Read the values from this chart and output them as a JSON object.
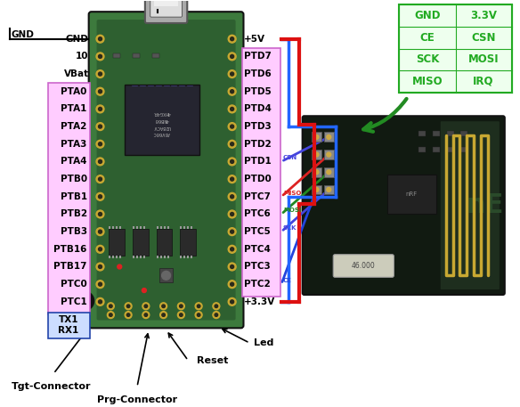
{
  "fig_width": 5.84,
  "fig_height": 4.57,
  "bg_color": "#ffffff",
  "board_left_labels": [
    "GND",
    "10",
    "VBat",
    "PTA0",
    "PTA1",
    "PTA2",
    "PTA3",
    "PTA4",
    "PTB0",
    "PTB1",
    "PTB2",
    "PTB3",
    "PTB16",
    "PTB17",
    "PTC0",
    "PTC1"
  ],
  "board_right_labels_mid": [
    "PTD7",
    "PTD6",
    "PTD5",
    "PTD4",
    "PTD3",
    "PTD2",
    "PTD1",
    "PTD0",
    "PTC7",
    "PTC6",
    "PTC5",
    "PTC4",
    "PTC3",
    "PTC2"
  ],
  "nrf_table_labels": [
    [
      "GND",
      "3.3V"
    ],
    [
      "CE",
      "CSN"
    ],
    [
      "SCK",
      "MOSI"
    ],
    [
      "MISO",
      "IRQ"
    ]
  ],
  "signal_wire_labels": [
    {
      "mid_idx": 6,
      "label": "CSN",
      "color": "#4444ff"
    },
    {
      "mid_idx": 8,
      "label": "MISO",
      "color": "#ff4444"
    },
    {
      "mid_idx": 9,
      "label": "MOSI",
      "color": "#44aa44"
    },
    {
      "mid_idx": 10,
      "label": "SCK",
      "color": "#4444ff"
    },
    {
      "mid_idx": 13,
      "label": "CE",
      "color": "#4444ff"
    }
  ],
  "pcb_green": "#3d7a3d",
  "pcb_dark": "#1a3a1a",
  "pcb_gold": "#c8a832",
  "pcb_hole": "#2a2a1a",
  "wire_blue": "#2266ff",
  "wire_red": "#dd1111",
  "wire_green_arrow": "#228b22",
  "tbl_green": "#22aa22",
  "tbl_bg": "#eeffee",
  "pink_fill": "#ffccff",
  "pink_edge": "#cc66cc",
  "blue_box_fill": "#ccddff",
  "blue_box_edge": "#2244aa"
}
